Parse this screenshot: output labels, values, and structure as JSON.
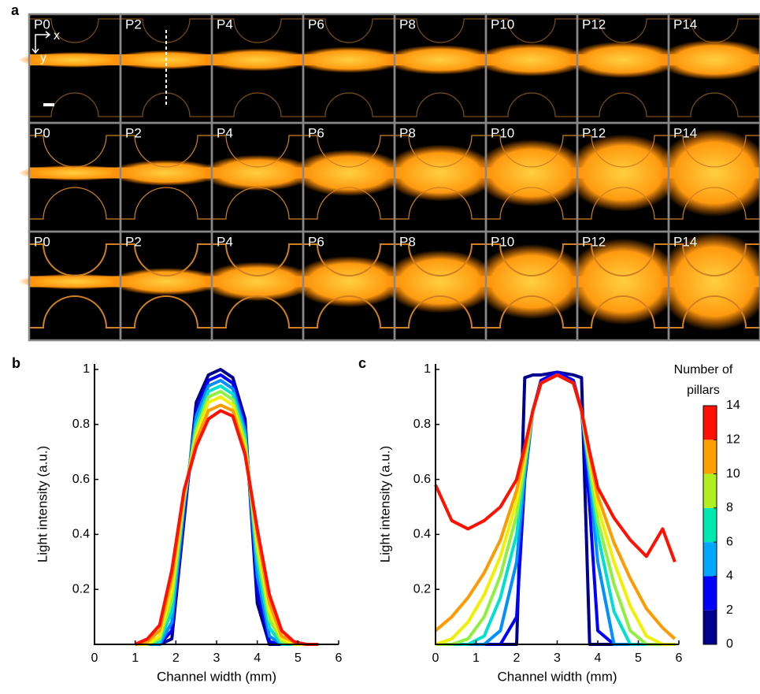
{
  "figure_a": {
    "panel_label": "a",
    "axis_x": "x",
    "axis_y": "y",
    "rows": [
      [
        "P0",
        "P2",
        "P4",
        "P6",
        "P8",
        "P10",
        "P12",
        "P14"
      ],
      [
        "P0",
        "P2",
        "P4",
        "P6",
        "P8",
        "P10",
        "P12",
        "P14"
      ],
      [
        "P0",
        "P2",
        "P4",
        "P6",
        "P8",
        "P10",
        "P12",
        "P14"
      ]
    ]
  },
  "chart_data": [
    {
      "type": "line",
      "panel_label": "b",
      "xlabel": "Channel width (mm)",
      "ylabel": "Light intensity (a.u.)",
      "x": [
        1.0,
        1.3,
        1.6,
        1.9,
        2.2,
        2.5,
        2.8,
        3.1,
        3.4,
        3.7,
        4.0,
        4.3,
        4.6,
        4.9,
        5.2,
        5.5
      ],
      "series": [
        {
          "color": "#00008f",
          "values": [
            0,
            0,
            0,
            0.02,
            0.45,
            0.88,
            0.98,
            1.0,
            0.97,
            0.82,
            0.15,
            0,
            0,
            0,
            0,
            0
          ]
        },
        {
          "color": "#0000ff",
          "values": [
            0,
            0,
            0,
            0.05,
            0.47,
            0.85,
            0.96,
            0.98,
            0.95,
            0.8,
            0.2,
            0.01,
            0,
            0,
            0,
            0
          ]
        },
        {
          "color": "#0090ff",
          "values": [
            0,
            0,
            0,
            0.08,
            0.5,
            0.83,
            0.94,
            0.96,
            0.93,
            0.78,
            0.25,
            0.03,
            0,
            0,
            0,
            0
          ]
        },
        {
          "color": "#00e0d0",
          "values": [
            0,
            0,
            0.01,
            0.12,
            0.52,
            0.8,
            0.92,
            0.94,
            0.91,
            0.76,
            0.3,
            0.06,
            0,
            0,
            0,
            0
          ]
        },
        {
          "color": "#90f040",
          "values": [
            0,
            0,
            0.02,
            0.16,
            0.53,
            0.78,
            0.9,
            0.92,
            0.89,
            0.74,
            0.34,
            0.09,
            0.01,
            0,
            0,
            0
          ]
        },
        {
          "color": "#f0f000",
          "values": [
            0,
            0,
            0.03,
            0.2,
            0.54,
            0.76,
            0.88,
            0.9,
            0.87,
            0.72,
            0.37,
            0.12,
            0.02,
            0,
            0,
            0
          ]
        },
        {
          "color": "#ff9a00",
          "values": [
            0,
            0.01,
            0.05,
            0.24,
            0.55,
            0.74,
            0.85,
            0.87,
            0.85,
            0.7,
            0.4,
            0.15,
            0.03,
            0.01,
            0,
            0
          ]
        },
        {
          "color": "#ff1000",
          "values": [
            0,
            0.02,
            0.07,
            0.27,
            0.56,
            0.72,
            0.82,
            0.85,
            0.83,
            0.69,
            0.42,
            0.18,
            0.05,
            0.01,
            0,
            0
          ]
        }
      ],
      "xlim": [
        0,
        6
      ],
      "ylim": [
        0,
        1.02
      ],
      "xticks": [
        0,
        1,
        2,
        3,
        4,
        5,
        6
      ],
      "yticks": [
        0.2,
        0.4,
        0.6,
        0.8,
        1
      ]
    },
    {
      "type": "line",
      "panel_label": "c",
      "xlabel": "Channel width (mm)",
      "ylabel": "Light intensity (a.u.)",
      "x": [
        0,
        0.4,
        0.8,
        1.2,
        1.6,
        2.0,
        2.2,
        2.4,
        2.6,
        3.0,
        3.4,
        3.6,
        3.8,
        4.0,
        4.4,
        4.8,
        5.2,
        5.6,
        5.9
      ],
      "series": [
        {
          "color": "#00008f",
          "values": [
            0,
            0,
            0,
            0,
            0,
            0,
            0.97,
            0.98,
            0.98,
            0.99,
            0.98,
            0.97,
            0,
            0,
            0,
            0,
            0,
            0,
            0
          ]
        },
        {
          "color": "#0000ff",
          "values": [
            0,
            0,
            0,
            0,
            0,
            0.1,
            0.6,
            0.85,
            0.96,
            0.99,
            0.96,
            0.85,
            0.5,
            0.05,
            0,
            0,
            0,
            0,
            0
          ]
        },
        {
          "color": "#0090ff",
          "values": [
            0,
            0,
            0,
            0,
            0.05,
            0.3,
            0.62,
            0.85,
            0.95,
            0.98,
            0.95,
            0.85,
            0.6,
            0.3,
            0,
            0,
            0,
            0,
            0
          ]
        },
        {
          "color": "#00e0d0",
          "values": [
            0,
            0,
            0,
            0.03,
            0.17,
            0.4,
            0.64,
            0.85,
            0.95,
            0.98,
            0.95,
            0.85,
            0.63,
            0.4,
            0.12,
            0,
            0,
            0,
            0
          ]
        },
        {
          "color": "#90f040",
          "values": [
            0,
            0,
            0.02,
            0.1,
            0.25,
            0.47,
            0.66,
            0.85,
            0.95,
            0.98,
            0.95,
            0.85,
            0.65,
            0.45,
            0.22,
            0.05,
            0,
            0,
            0
          ]
        },
        {
          "color": "#f0f000",
          "values": [
            0,
            0.02,
            0.08,
            0.18,
            0.32,
            0.52,
            0.68,
            0.85,
            0.95,
            0.98,
            0.95,
            0.85,
            0.67,
            0.5,
            0.3,
            0.14,
            0.03,
            0,
            0
          ]
        },
        {
          "color": "#ff9a00",
          "values": [
            0.05,
            0.1,
            0.17,
            0.26,
            0.38,
            0.56,
            0.7,
            0.85,
            0.95,
            0.98,
            0.95,
            0.85,
            0.69,
            0.54,
            0.37,
            0.24,
            0.13,
            0.06,
            0.02
          ]
        },
        {
          "color": "#ff1000",
          "values": [
            0.58,
            0.45,
            0.42,
            0.45,
            0.5,
            0.6,
            0.72,
            0.85,
            0.95,
            0.98,
            0.95,
            0.85,
            0.7,
            0.57,
            0.46,
            0.38,
            0.32,
            0.42,
            0.3
          ]
        }
      ],
      "xlim": [
        0,
        6
      ],
      "ylim": [
        0,
        1.02
      ],
      "xticks": [
        0,
        1,
        2,
        3,
        4,
        5,
        6
      ],
      "yticks": [
        0.2,
        0.4,
        0.6,
        0.8,
        1
      ],
      "colorbar": {
        "title": [
          "Number of",
          "pillars"
        ],
        "lim": [
          0,
          14
        ],
        "ticks": [
          0,
          2,
          4,
          6,
          8,
          10,
          12,
          14
        ],
        "colors": [
          "#00008f",
          "#0000ff",
          "#00a8ff",
          "#00e8b0",
          "#b0f020",
          "#ffa000",
          "#ff1000"
        ]
      }
    }
  ]
}
